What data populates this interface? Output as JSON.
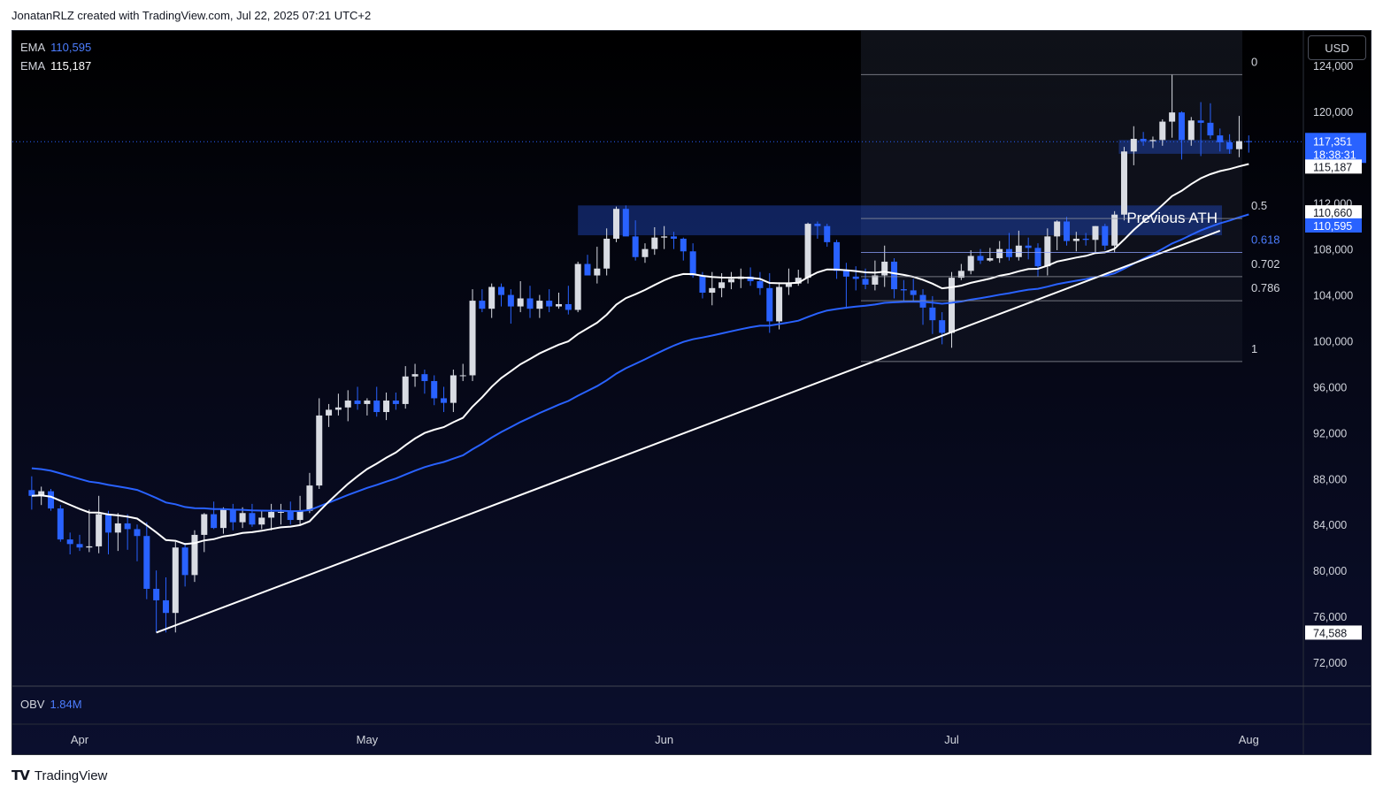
{
  "header": {
    "text": "JonatanRLZ created with TradingView.com, Jul 22, 2025 07:21 UTC+2"
  },
  "legend": {
    "ema1_label": "EMA",
    "ema1_value": "110,595",
    "ema2_label": "EMA",
    "ema2_value": "115,187",
    "obv_label": "OBV",
    "obv_value": "1.84M"
  },
  "currency": "USD",
  "footer": {
    "brand": "TradingView"
  },
  "colors": {
    "up": "#d9dce3",
    "down": "#2962ff",
    "ema_fast": "#ffffff",
    "ema_slow": "#2962ff",
    "price_line": "#2962ff"
  },
  "chart_data": {
    "type": "candlestick",
    "x_labels": [
      "Apr",
      "May",
      "Jun",
      "Jul",
      "Aug"
    ],
    "y_ticks": [
      124000,
      120000,
      112000,
      108000,
      104000,
      100000,
      96000,
      92000,
      88000,
      84000,
      80000,
      76000,
      72000
    ],
    "y_tick_labels": [
      "124,000",
      "120,000",
      "112,000",
      "108,000",
      "104,000",
      "100,000",
      "96,000",
      "92,000",
      "88,000",
      "84,000",
      "80,000",
      "76,000",
      "72,000"
    ],
    "ylim": [
      70000,
      127000
    ],
    "start_date": "2025-03-27",
    "candles": [
      [
        87000,
        88200,
        85300,
        86500
      ],
      [
        86500,
        87300,
        85700,
        86900
      ],
      [
        86900,
        87100,
        85200,
        85400
      ],
      [
        85400,
        85700,
        82500,
        82700
      ],
      [
        82700,
        83300,
        81400,
        82300
      ],
      [
        82300,
        83100,
        81700,
        82000
      ],
      [
        82000,
        85300,
        81600,
        82100
      ],
      [
        82100,
        86500,
        81500,
        84900
      ],
      [
        84900,
        85200,
        81400,
        83300
      ],
      [
        83300,
        85000,
        81700,
        84100
      ],
      [
        84100,
        84900,
        81800,
        83600
      ],
      [
        83600,
        84000,
        80800,
        83000
      ],
      [
        83000,
        84200,
        77500,
        78400
      ],
      [
        78400,
        80000,
        74600,
        77400
      ],
      [
        77400,
        79400,
        74600,
        76300
      ],
      [
        76300,
        82500,
        74600,
        82000
      ],
      [
        82000,
        82400,
        78600,
        79600
      ],
      [
        79600,
        83500,
        79000,
        83100
      ],
      [
        83100,
        85000,
        81600,
        84900
      ],
      [
        84900,
        86000,
        83600,
        83700
      ],
      [
        83700,
        85500,
        83200,
        85300
      ],
      [
        85300,
        85800,
        83500,
        84200
      ],
      [
        84200,
        85500,
        83700,
        85000
      ],
      [
        85000,
        85800,
        83800,
        84000
      ],
      [
        84000,
        85200,
        83600,
        84600
      ],
      [
        84600,
        85800,
        83500,
        85100
      ],
      [
        85100,
        85800,
        84000,
        85100
      ],
      [
        85100,
        86000,
        84000,
        84400
      ],
      [
        84400,
        86500,
        84000,
        85200
      ],
      [
        85200,
        88500,
        85000,
        87400
      ],
      [
        87400,
        95000,
        87100,
        93500
      ],
      [
        93500,
        94500,
        92500,
        94000
      ],
      [
        94000,
        95400,
        93500,
        94200
      ],
      [
        94200,
        95700,
        93000,
        94800
      ],
      [
        94800,
        96000,
        94000,
        94500
      ],
      [
        94500,
        95000,
        93500,
        94800
      ],
      [
        94800,
        96000,
        93400,
        93800
      ],
      [
        93800,
        95500,
        93100,
        94800
      ],
      [
        94800,
        95500,
        94000,
        94500
      ],
      [
        94500,
        97800,
        94100,
        96900
      ],
      [
        96900,
        98000,
        96000,
        97100
      ],
      [
        97100,
        97500,
        95400,
        96500
      ],
      [
        96500,
        97000,
        94400,
        95000
      ],
      [
        95000,
        96000,
        93800,
        94600
      ],
      [
        94600,
        97500,
        93800,
        97000
      ],
      [
        97000,
        98000,
        96500,
        97000
      ],
      [
        97000,
        104500,
        96500,
        103500
      ],
      [
        103500,
        104500,
        102500,
        102800
      ],
      [
        102800,
        105000,
        102000,
        104700
      ],
      [
        104700,
        105000,
        103000,
        104000
      ],
      [
        104000,
        104500,
        101500,
        103000
      ],
      [
        103000,
        105200,
        102500,
        103700
      ],
      [
        103700,
        104800,
        102000,
        102800
      ],
      [
        102800,
        104000,
        102000,
        103500
      ],
      [
        103500,
        104500,
        102500,
        103000
      ],
      [
        103000,
        104200,
        102800,
        103200
      ],
      [
        103200,
        104800,
        102300,
        102700
      ],
      [
        102700,
        106900,
        102500,
        106700
      ],
      [
        106700,
        107500,
        105800,
        105700
      ],
      [
        105700,
        108200,
        105000,
        106300
      ],
      [
        106300,
        109800,
        105700,
        108900
      ],
      [
        108900,
        111700,
        108600,
        111500
      ],
      [
        111500,
        111800,
        109600,
        109100
      ],
      [
        109100,
        110500,
        107000,
        107300
      ],
      [
        107300,
        108500,
        106800,
        108000
      ],
      [
        108000,
        109900,
        107500,
        109000
      ],
      [
        109000,
        110000,
        108000,
        109100
      ],
      [
        109100,
        109500,
        108000,
        108900
      ],
      [
        108900,
        109000,
        107000,
        107800
      ],
      [
        107800,
        108500,
        105500,
        105700
      ],
      [
        105700,
        106000,
        103700,
        104200
      ],
      [
        104200,
        106000,
        103100,
        104600
      ],
      [
        104600,
        105900,
        103800,
        105100
      ],
      [
        105100,
        106000,
        104500,
        105400
      ],
      [
        105400,
        106300,
        104600,
        105600
      ],
      [
        105600,
        106400,
        104800,
        105200
      ],
      [
        105200,
        106000,
        104000,
        104600
      ],
      [
        104600,
        105900,
        100700,
        101700
      ],
      [
        101700,
        105100,
        101000,
        104700
      ],
      [
        104700,
        106300,
        104000,
        105000
      ],
      [
        105000,
        106200,
        104800,
        105500
      ],
      [
        105500,
        110300,
        105000,
        110200
      ],
      [
        110200,
        110400,
        108900,
        110000
      ],
      [
        110000,
        110200,
        108200,
        108600
      ],
      [
        108600,
        108800,
        105400,
        106100
      ],
      [
        106100,
        106800,
        102800,
        105600
      ],
      [
        105600,
        106500,
        104400,
        105400
      ],
      [
        105400,
        106300,
        104500,
        104900
      ],
      [
        104900,
        107000,
        104400,
        105700
      ],
      [
        105700,
        108300,
        104700,
        106900
      ],
      [
        106900,
        107200,
        103700,
        104500
      ],
      [
        104500,
        105300,
        103500,
        104400
      ],
      [
        104400,
        105400,
        103500,
        104000
      ],
      [
        104000,
        104500,
        101400,
        102900
      ],
      [
        102900,
        103900,
        100600,
        101800
      ],
      [
        101800,
        102500,
        99700,
        100700
      ],
      [
        100700,
        106000,
        99400,
        105500
      ],
      [
        105500,
        106700,
        105300,
        106100
      ],
      [
        106100,
        107900,
        105800,
        107400
      ],
      [
        107400,
        108000,
        106700,
        107000
      ],
      [
        107000,
        108100,
        106900,
        107200
      ],
      [
        107200,
        108700,
        106800,
        108000
      ],
      [
        108000,
        109400,
        107000,
        107300
      ],
      [
        107300,
        109600,
        107000,
        108300
      ],
      [
        108300,
        109000,
        107100,
        108100
      ],
      [
        108100,
        108500,
        105600,
        106500
      ],
      [
        106500,
        109800,
        105700,
        109100
      ],
      [
        109100,
        110500,
        107900,
        110400
      ],
      [
        110400,
        110800,
        108300,
        108700
      ],
      [
        108700,
        109500,
        107800,
        108900
      ],
      [
        108900,
        109400,
        108300,
        108800
      ],
      [
        108800,
        110000,
        107700,
        110000
      ],
      [
        110000,
        110200,
        107900,
        108300
      ],
      [
        108300,
        111300,
        107700,
        111000
      ],
      [
        111000,
        116900,
        110500,
        116500
      ],
      [
        116500,
        118700,
        115300,
        117600
      ],
      [
        117600,
        118200,
        117000,
        117400
      ],
      [
        117400,
        117800,
        116800,
        117500
      ],
      [
        117500,
        119300,
        117000,
        119100
      ],
      [
        119100,
        123200,
        117700,
        119900
      ],
      [
        119900,
        120000,
        115800,
        117500
      ],
      [
        117500,
        119500,
        117000,
        119200
      ],
      [
        119200,
        120800,
        116100,
        119000
      ],
      [
        119000,
        120700,
        117600,
        117900
      ],
      [
        117900,
        118500,
        116500,
        117300
      ],
      [
        117300,
        118000,
        116300,
        116700
      ],
      [
        116700,
        119600,
        116000,
        117400
      ],
      [
        117400,
        117900,
        116400,
        117351
      ]
    ],
    "ema_fast": {
      "name": "EMA",
      "value": 115187
    },
    "ema_slow": {
      "name": "EMA",
      "value": 110595
    },
    "last_price": {
      "value": 117351,
      "label": "117,351",
      "countdown": "18:38:31"
    },
    "axis_markers": [
      {
        "label": "115,187",
        "value": 115187
      },
      {
        "label": "110,660",
        "value": 110660
      },
      {
        "label": "110,595",
        "value": 110595
      },
      {
        "label": "74,588",
        "value": 74588
      }
    ],
    "fibonacci": {
      "levels": [
        {
          "label": "0",
          "value": 123200
        },
        {
          "label": "0.5",
          "value": 110660
        },
        {
          "label": "0.618",
          "value": 107700
        },
        {
          "label": "0.702",
          "value": 105600
        },
        {
          "label": "0.786",
          "value": 103500
        },
        {
          "label": "1",
          "value": 98200
        }
      ]
    },
    "annotations": [
      {
        "text": "Previous ATH",
        "zone": [
          109200,
          111800
        ]
      },
      {
        "text": "",
        "zone": [
          116300,
          117500
        ]
      }
    ],
    "trendline": {
      "from": [
        "2025-04-09",
        74588
      ],
      "to": [
        "2025-07-29",
        109600
      ]
    },
    "obv": {
      "name": "OBV",
      "value": "1.84M"
    }
  }
}
